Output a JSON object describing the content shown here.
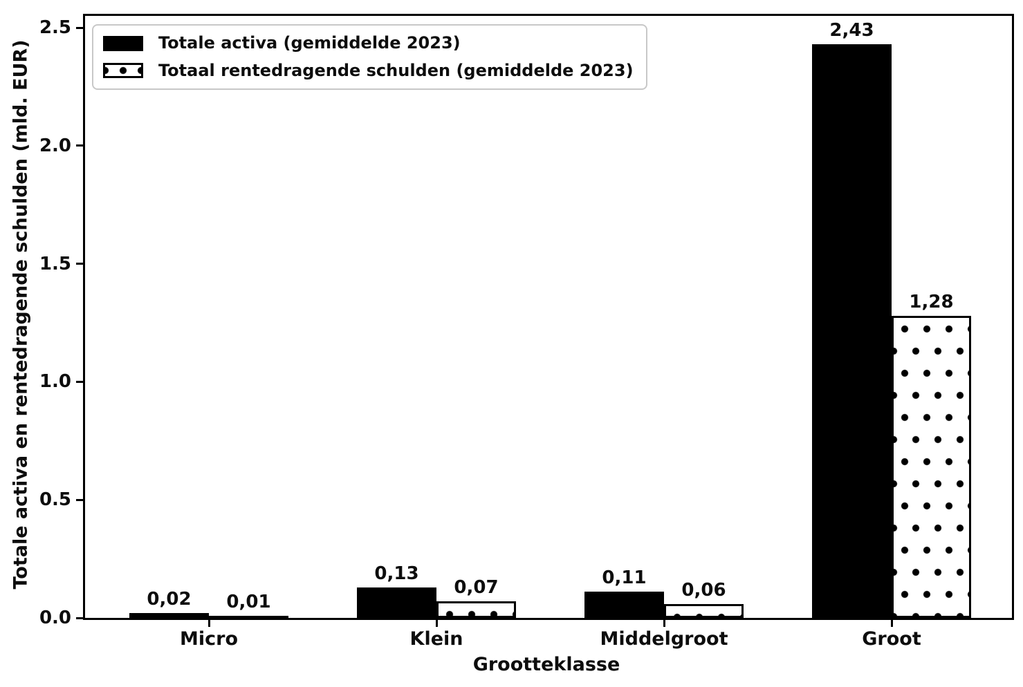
{
  "chart_data": {
    "type": "bar",
    "title": "",
    "xlabel": "Grootteklasse",
    "ylabel": "Totale activa en rentedragende schulden (mld. EUR)",
    "categories": [
      "Micro",
      "Klein",
      "Middelgroot",
      "Groot"
    ],
    "series": [
      {
        "name": "Totale activa (gemiddelde 2023)",
        "values": [
          0.02,
          0.13,
          0.11,
          2.43
        ],
        "value_labels": [
          "0,02",
          "0,13",
          "0,11",
          "2,43"
        ],
        "style": "solid-black"
      },
      {
        "name": "Totaal rentedragende schulden (gemiddelde 2023)",
        "values": [
          0.01,
          0.07,
          0.06,
          1.28
        ],
        "value_labels": [
          "0,01",
          "0,07",
          "0,06",
          "1,28"
        ],
        "style": "white-dotted-hatch"
      }
    ],
    "yticks": [
      0.0,
      0.5,
      1.0,
      1.5,
      2.0,
      2.5
    ],
    "ytick_labels": [
      "0.0",
      "0.5",
      "1.0",
      "1.5",
      "2.0",
      "2.5"
    ],
    "ylim": [
      0,
      2.55
    ],
    "grid": false,
    "legend_position": "upper left",
    "colors": {
      "bar_fill": "#000000",
      "bar_edge": "#000000",
      "hatch_dot": "#000000",
      "background": "#ffffff",
      "legend_border": "#c8c8c8",
      "text": "#0d0d0d"
    }
  }
}
